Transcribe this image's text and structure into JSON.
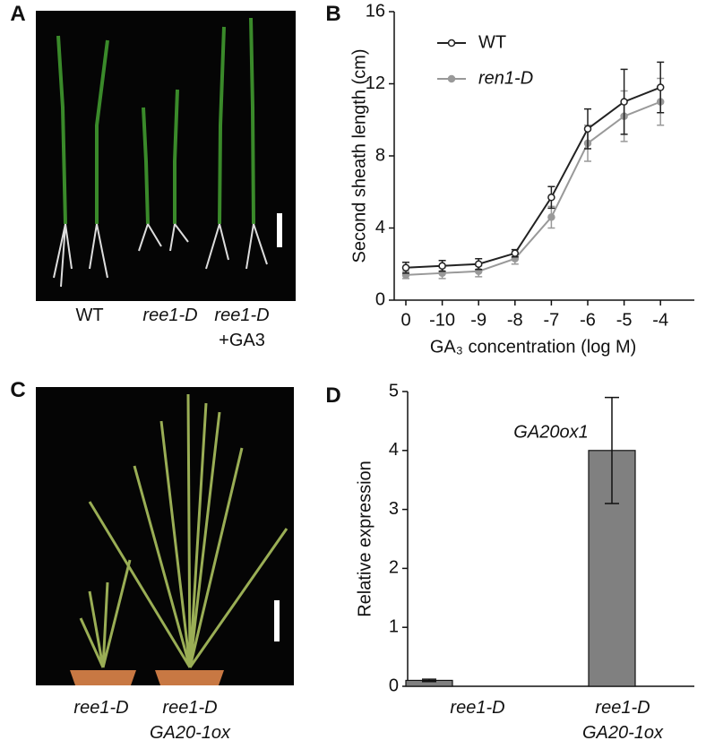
{
  "panel_labels": [
    "A",
    "B",
    "C",
    "D"
  ],
  "photo_a": {
    "captions": [
      "WT",
      "ree1-D",
      "ree1-D",
      "+GA3"
    ]
  },
  "photo_c": {
    "captions": [
      "ree1-D",
      "ree1-D",
      "GA20-1ox"
    ]
  },
  "chart_data": [
    {
      "type": "line",
      "ylabel": "Second sheath length (cm)",
      "xlabel": "GA₃ concentration (log M)",
      "categories": [
        "0",
        "-10",
        "-9",
        "-8",
        "-7",
        "-6",
        "-5",
        "-4"
      ],
      "series": [
        {
          "name": "WT",
          "color": "#222222",
          "values": [
            1.8,
            1.9,
            2.0,
            2.6,
            5.7,
            9.5,
            11.0,
            11.8
          ],
          "errors": [
            0.3,
            0.3,
            0.3,
            0.2,
            0.6,
            1.1,
            1.8,
            1.4
          ]
        },
        {
          "name": "ren1-D",
          "color": "#999999",
          "values": [
            1.4,
            1.5,
            1.6,
            2.3,
            4.6,
            8.7,
            10.2,
            11.0
          ],
          "errors": [
            0.2,
            0.3,
            0.3,
            0.3,
            0.6,
            1.0,
            1.4,
            1.3
          ]
        }
      ],
      "ylim": [
        0,
        16
      ],
      "yticks": [
        0,
        4,
        8,
        12,
        16
      ]
    },
    {
      "type": "bar",
      "ylabel": "Relative expression",
      "annotation": "GA20ox1",
      "categories": [
        "ree1-D",
        "ree1-D\nGA20-1ox"
      ],
      "values": [
        0.1,
        4.0
      ],
      "errors": [
        0.02,
        0.9
      ],
      "color": "#808080",
      "ylim": [
        0,
        5
      ],
      "yticks": [
        0,
        1,
        2,
        3,
        4,
        5
      ]
    }
  ]
}
